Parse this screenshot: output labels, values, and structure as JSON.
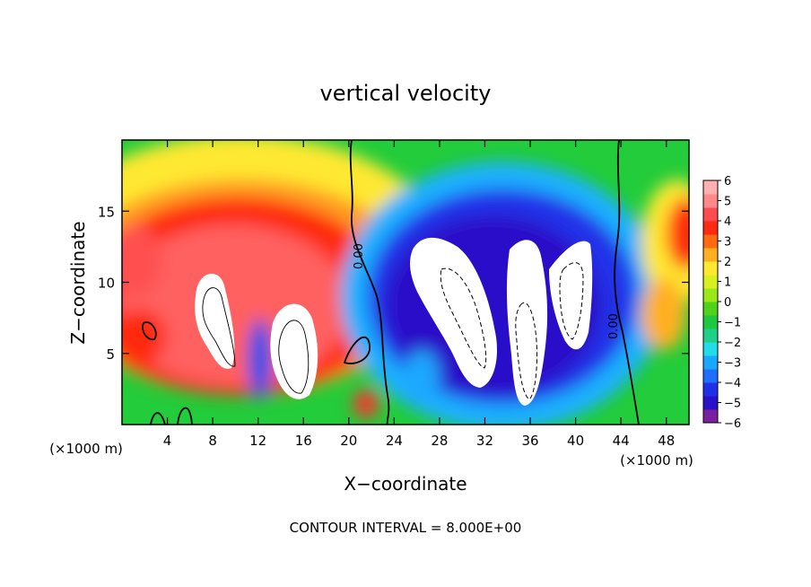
{
  "chart_data": {
    "type": "heatmap",
    "title": "vertical velocity",
    "xlabel": "X−coordinate",
    "ylabel": "Z−coordinate",
    "x_unit_left": "(×1000 m)",
    "x_unit_right": "(×1000 m)",
    "footer": "CONTOUR INTERVAL = 8.000E+00",
    "contour_label": "0.00",
    "xlim": [
      0,
      50
    ],
    "ylim": [
      0,
      20
    ],
    "x_ticks": [
      4,
      8,
      12,
      16,
      20,
      24,
      28,
      32,
      36,
      40,
      44,
      48
    ],
    "y_ticks": [
      5,
      10,
      15
    ],
    "colorbar": {
      "min": -6,
      "max": 6,
      "tick_labels": [
        "6",
        "5",
        "4",
        "3",
        "2",
        "1",
        "0",
        "−1",
        "−2",
        "−3",
        "−4",
        "−5",
        "−6"
      ],
      "colors": [
        "#7a1fa0",
        "#2a10c8",
        "#2030e8",
        "#1e6fff",
        "#1aa8ff",
        "#22dde8",
        "#1fd088",
        "#20c840",
        "#4ed21a",
        "#9be81a",
        "#d8f020",
        "#ffe830",
        "#ffb020",
        "#ff6a10",
        "#ff2a10",
        "#ff4a50",
        "#ff8888",
        "#ffb0b0"
      ]
    },
    "features": [
      {
        "kind": "updraft",
        "x": 8.5,
        "z": 8.0,
        "w": 16,
        "note": "white saturated core"
      },
      {
        "kind": "updraft",
        "x": 15.0,
        "z": 5.5,
        "w": 12,
        "note": "white saturated core"
      },
      {
        "kind": "downdraft",
        "x": 31.0,
        "z": 7.5,
        "w": -14,
        "note": "white saturated core"
      },
      {
        "kind": "downdraft",
        "x": 38.5,
        "z": 7.0,
        "w": -14,
        "note": "white saturated core"
      }
    ]
  }
}
